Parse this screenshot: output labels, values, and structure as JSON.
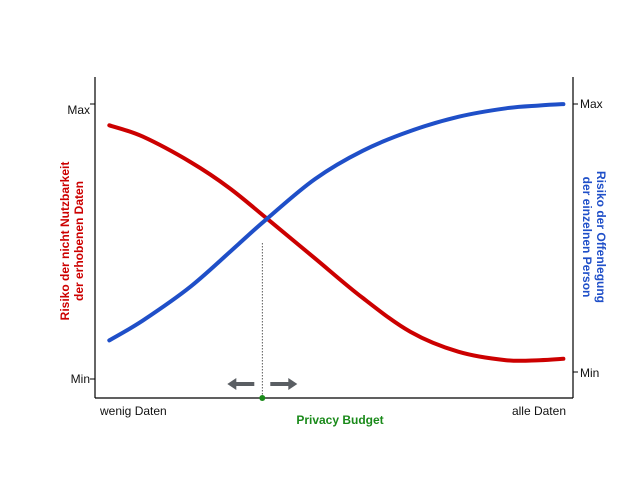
{
  "chart_data": {
    "type": "line",
    "title": "",
    "xlabel": "Privacy Budget",
    "xlabel_color": "#1a8a1a",
    "x_tick_labels": [
      "wenig Daten",
      "alle Daten"
    ],
    "left_axis": {
      "label_lines": [
        "Risiko der nicht Nutzbarkeit",
        "der erhobenen Daten"
      ],
      "color": "#cc0000",
      "tick_labels": [
        "Max",
        "Min"
      ]
    },
    "right_axis": {
      "label_lines": [
        "Risiko der Offenlegung",
        "der einzelnen Person"
      ],
      "color": "#1f4fc8",
      "tick_labels": [
        "Max",
        "Min"
      ]
    },
    "xlim": [
      0,
      1
    ],
    "ylim": [
      0,
      1
    ],
    "series": [
      {
        "axis": "left",
        "color": "#cc0000",
        "x": [
          0.03,
          0.1,
          0.2,
          0.28,
          0.36,
          0.46,
          0.56,
          0.66,
          0.76,
          0.86,
          0.93,
          0.98
        ],
        "y": [
          0.9,
          0.86,
          0.77,
          0.68,
          0.57,
          0.43,
          0.29,
          0.17,
          0.1,
          0.07,
          0.07,
          0.075
        ]
      },
      {
        "axis": "right",
        "color": "#1f4fc8",
        "x": [
          0.03,
          0.1,
          0.2,
          0.3,
          0.36,
          0.46,
          0.56,
          0.66,
          0.76,
          0.86,
          0.93,
          0.98
        ],
        "y": [
          0.14,
          0.21,
          0.33,
          0.48,
          0.57,
          0.71,
          0.81,
          0.88,
          0.93,
          0.96,
          0.97,
          0.975
        ]
      }
    ],
    "marker": {
      "x": 0.35,
      "color": "#1a8a1a",
      "arrows": [
        "left",
        "right"
      ],
      "arrow_color": "#5a5e63"
    },
    "grid": false
  }
}
